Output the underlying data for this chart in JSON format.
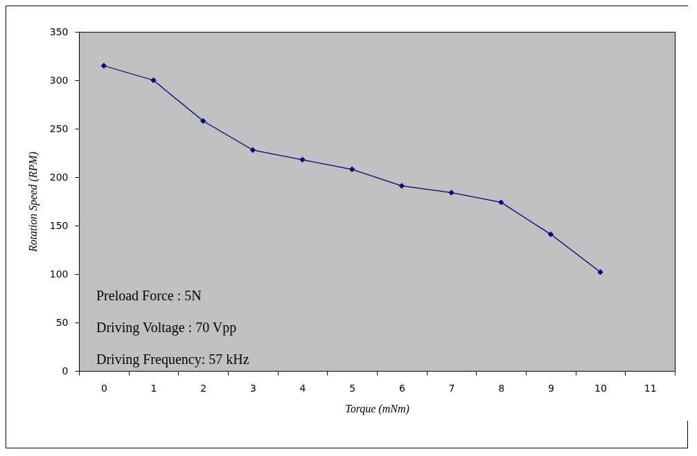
{
  "chart_data": {
    "type": "line",
    "xlabel": "Torque (mNm)",
    "ylabel": "Rotation Speed (RPM)",
    "categories": [
      "0",
      "1",
      "2",
      "3",
      "4",
      "5",
      "6",
      "7",
      "8",
      "9",
      "10",
      "11"
    ],
    "series": [
      {
        "color": "#000080",
        "values": [
          315,
          300,
          258,
          228,
          218,
          208,
          191,
          184,
          174,
          141,
          102,
          null
        ]
      }
    ],
    "ylim": [
      0,
      350
    ],
    "yticks": [
      0,
      50,
      100,
      150,
      200,
      250,
      300,
      350
    ],
    "marker": "diamond",
    "line_style": "solid",
    "grid": false,
    "legend": false,
    "annotations": [
      "Preload Force : 5N",
      "Driving Voltage : 70 Vpp",
      "Driving Frequency: 57 kHz"
    ]
  }
}
